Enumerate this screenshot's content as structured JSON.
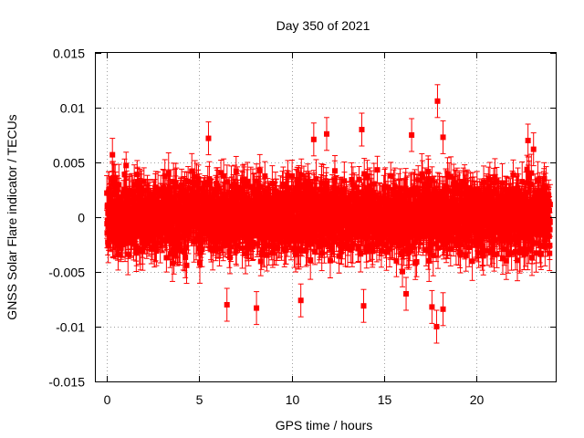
{
  "chart_data": {
    "type": "scatter",
    "title": "Day 350 of 2021",
    "xlabel": "GPS time / hours",
    "ylabel": "GNSS Solar Flare indicator / TECUs",
    "xlim": [
      -0.6,
      24.3
    ],
    "ylim": [
      -0.015,
      0.015
    ],
    "xticks": [
      0,
      5,
      10,
      15,
      20
    ],
    "yticks": [
      -0.015,
      -0.01,
      -0.005,
      0,
      0.005,
      0.01,
      0.015
    ],
    "xtick_labels": [
      "0",
      "5",
      "10",
      "15",
      "20"
    ],
    "ytick_labels": [
      "-0.015",
      "-0.01",
      "-0.005",
      "0",
      "0.005",
      "0.01",
      "0.015"
    ],
    "grid": true,
    "series": [
      {
        "color": "#ff0000",
        "marker": "square",
        "error_bars": true,
        "typical_error": 0.0015,
        "sampling_interval_hours": 0.00833,
        "x_range": [
          0,
          24
        ],
        "band_upper_envelope": 0.0045,
        "band_lower_envelope": -0.0042,
        "notable_points": [
          {
            "x": 17.9,
            "y": 0.0106
          },
          {
            "x": 17.85,
            "y": -0.01
          },
          {
            "x": 17.6,
            "y": -0.0082
          },
          {
            "x": 18.2,
            "y": -0.0084
          },
          {
            "x": 6.5,
            "y": -0.008
          },
          {
            "x": 8.1,
            "y": -0.0083
          },
          {
            "x": 10.5,
            "y": -0.0076
          },
          {
            "x": 13.9,
            "y": -0.0081
          },
          {
            "x": 13.8,
            "y": 0.008
          },
          {
            "x": 16.5,
            "y": 0.0075
          },
          {
            "x": 18.2,
            "y": 0.0073
          },
          {
            "x": 5.5,
            "y": 0.0072
          },
          {
            "x": 11.9,
            "y": 0.0076
          },
          {
            "x": 16.2,
            "y": -0.007
          },
          {
            "x": 11.2,
            "y": 0.0071
          },
          {
            "x": 0.3,
            "y": 0.0057
          },
          {
            "x": 22.8,
            "y": 0.007
          },
          {
            "x": 23.1,
            "y": 0.0062
          }
        ]
      }
    ]
  }
}
